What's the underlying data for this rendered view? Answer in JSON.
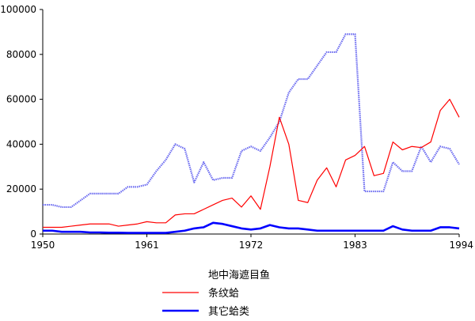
{
  "chart_data": {
    "type": "line",
    "title": "",
    "xlabel": "",
    "ylabel": "",
    "xlim": [
      1950,
      1994
    ],
    "ylim": [
      0,
      100000
    ],
    "x_ticks": [
      1950,
      1961,
      1972,
      1983,
      1994
    ],
    "y_ticks": [
      0,
      20000,
      40000,
      60000,
      80000,
      100000
    ],
    "x_tick_labels": [
      "1950",
      "1961",
      "1972",
      "1983",
      "1994"
    ],
    "y_tick_labels": [
      "0",
      "20000",
      "40000",
      "60000",
      "80000",
      "100000"
    ],
    "grid": false,
    "legend_position": "bottom-center",
    "x": [
      1950,
      1951,
      1952,
      1953,
      1954,
      1955,
      1956,
      1957,
      1958,
      1959,
      1960,
      1961,
      1962,
      1963,
      1964,
      1965,
      1966,
      1967,
      1968,
      1969,
      1970,
      1971,
      1972,
      1973,
      1974,
      1975,
      1976,
      1977,
      1978,
      1979,
      1980,
      1981,
      1982,
      1983,
      1984,
      1985,
      1986,
      1987,
      1988,
      1989,
      1990,
      1991,
      1992,
      1993,
      1994
    ],
    "series": [
      {
        "name": "地中海遮目鱼",
        "color": "#6b6bf0",
        "style": "hatched",
        "values": [
          13000,
          13000,
          12000,
          12000,
          15000,
          18000,
          18000,
          18000,
          18000,
          21000,
          21000,
          22000,
          28000,
          33000,
          40000,
          38000,
          23000,
          32000,
          24000,
          25000,
          25000,
          37000,
          39000,
          37000,
          43000,
          50000,
          63000,
          69000,
          69000,
          75000,
          81000,
          81000,
          89000,
          89000,
          19000,
          19000,
          19000,
          32000,
          28000,
          28000,
          39000,
          32000,
          39000,
          38000,
          31000
        ]
      },
      {
        "name": "条纹蛤",
        "color": "#ff0000",
        "style": "solid",
        "values": [
          3000,
          3000,
          3000,
          3500,
          4000,
          4500,
          4500,
          4500,
          3500,
          4000,
          4500,
          5500,
          5000,
          5000,
          8500,
          9000,
          9000,
          11000,
          13000,
          15000,
          16000,
          12000,
          17000,
          11000,
          30000,
          52000,
          40000,
          15000,
          14000,
          24000,
          29500,
          21000,
          33000,
          35000,
          39000,
          26000,
          27000,
          41000,
          37500,
          39000,
          38500,
          41000,
          55000,
          60000,
          52000
        ]
      },
      {
        "name": "其它蛤类",
        "color": "#0000ff",
        "style": "thick",
        "values": [
          1500,
          1500,
          1000,
          1000,
          1000,
          700,
          700,
          600,
          600,
          500,
          500,
          500,
          500,
          500,
          1000,
          1500,
          2500,
          3000,
          5000,
          4500,
          3500,
          2500,
          2000,
          2500,
          4000,
          3000,
          2500,
          2500,
          2000,
          1500,
          1500,
          1500,
          1500,
          1500,
          1500,
          1500,
          1500,
          3500,
          2000,
          1500,
          1500,
          1500,
          3000,
          3000,
          2500
        ]
      }
    ]
  }
}
